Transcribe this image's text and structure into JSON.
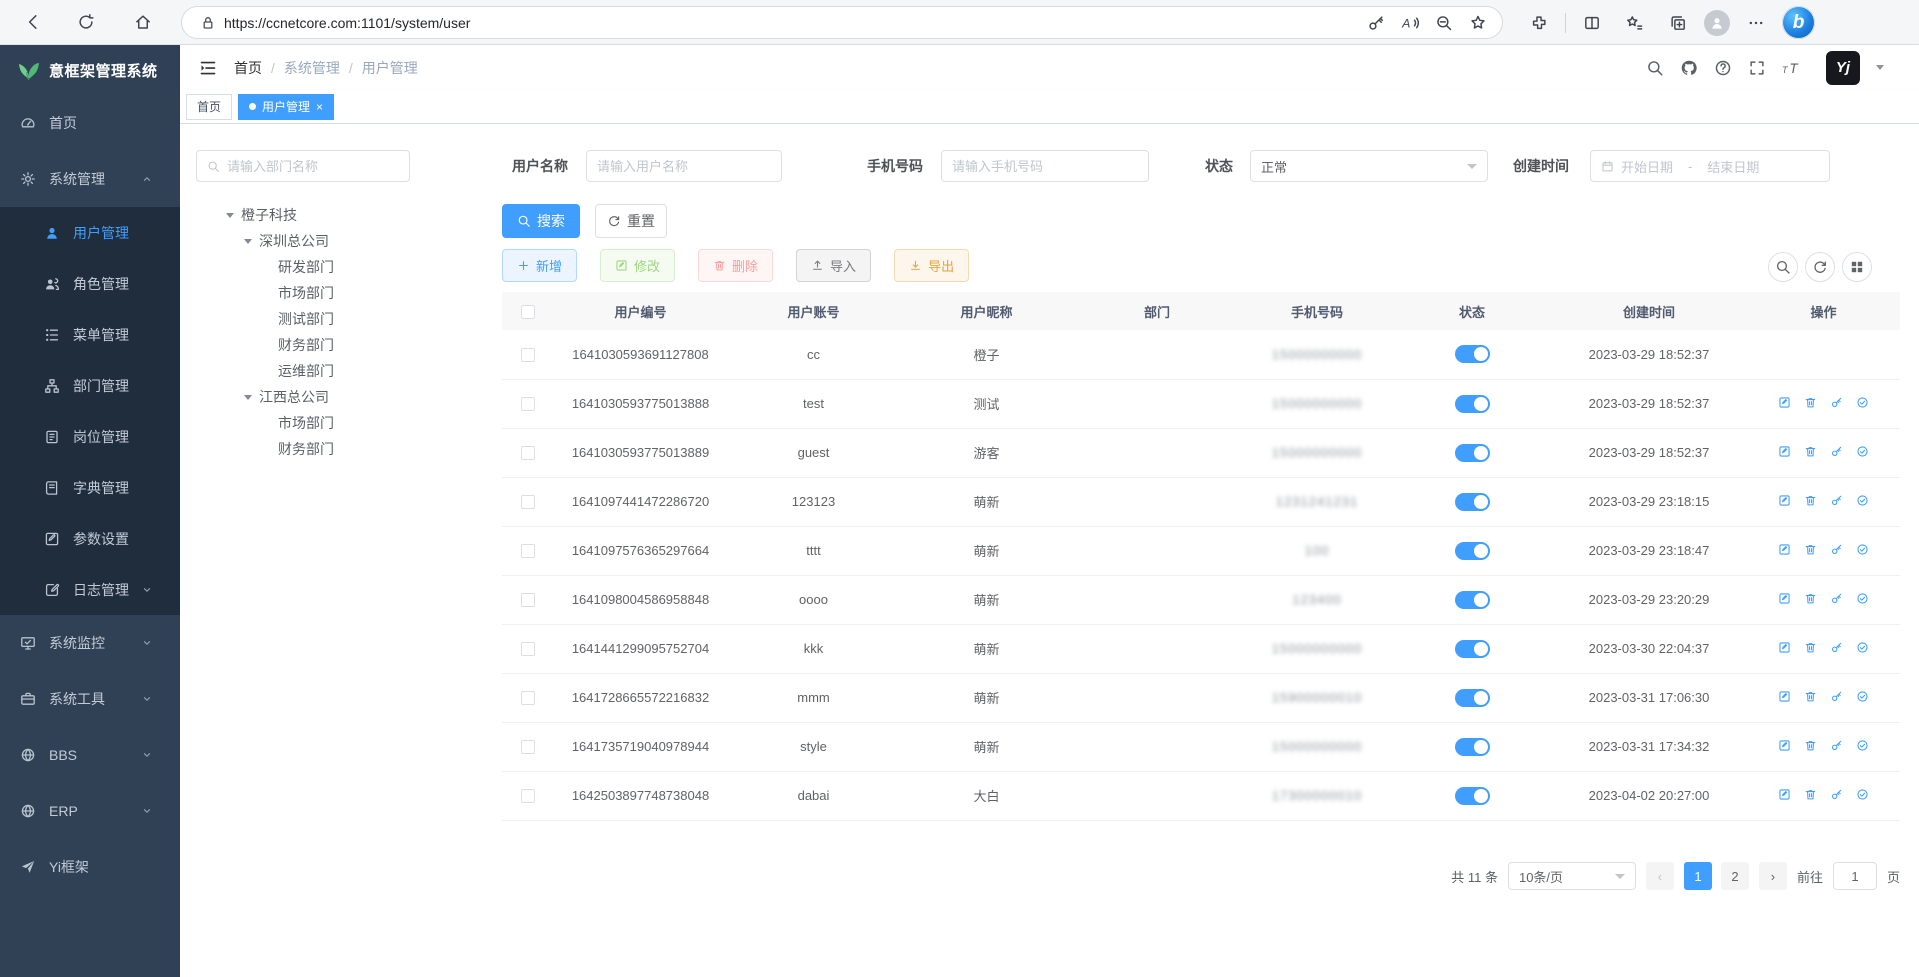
{
  "browser": {
    "url": "https://ccnetcore.com:1101/system/user"
  },
  "logo": {
    "title": "意框架管理系统"
  },
  "breadcrumb": {
    "separator": "/",
    "items": [
      "首页",
      "系统管理",
      "用户管理"
    ]
  },
  "tags": {
    "items": [
      {
        "label": "首页",
        "active": false,
        "closable": false
      },
      {
        "label": "用户管理",
        "active": true,
        "closable": true
      }
    ]
  },
  "sidebar": {
    "items": [
      {
        "label": "首页",
        "icon": "dashboard",
        "level": 0
      },
      {
        "label": "系统管理",
        "icon": "gear",
        "level": 0,
        "caret": "up"
      },
      {
        "label": "用户管理",
        "icon": "user",
        "level": 1,
        "active": true
      },
      {
        "label": "角色管理",
        "icon": "users",
        "level": 1
      },
      {
        "label": "菜单管理",
        "icon": "menu",
        "level": 1
      },
      {
        "label": "部门管理",
        "icon": "org",
        "level": 1
      },
      {
        "label": "岗位管理",
        "icon": "badge",
        "level": 1
      },
      {
        "label": "字典管理",
        "icon": "dict",
        "level": 1
      },
      {
        "label": "参数设置",
        "icon": "param",
        "level": 1
      },
      {
        "label": "日志管理",
        "icon": "log",
        "level": 1,
        "caret": "down"
      },
      {
        "label": "系统监控",
        "icon": "monitor",
        "level": 0,
        "caret": "down"
      },
      {
        "label": "系统工具",
        "icon": "tool",
        "level": 0,
        "caret": "down"
      },
      {
        "label": "BBS",
        "icon": "globe",
        "level": 0,
        "caret": "down"
      },
      {
        "label": "ERP",
        "icon": "globe",
        "level": 0,
        "caret": "down"
      },
      {
        "label": "Yi框架",
        "icon": "send",
        "level": 0
      }
    ]
  },
  "filters": {
    "dept_placeholder": "请输入部门名称",
    "username_label": "用户名称",
    "username_placeholder": "请输入用户名称",
    "phone_label": "手机号码",
    "phone_placeholder": "请输入手机号码",
    "status_label": "状态",
    "status_value": "正常",
    "created_label": "创建时间",
    "start_placeholder": "开始日期",
    "range_separator": "-",
    "end_placeholder": "结束日期"
  },
  "actions": {
    "search": "搜索",
    "reset": "重置",
    "add": "新增",
    "edit": "修改",
    "del": "删除",
    "import": "导入",
    "export": "导出"
  },
  "tree": {
    "nodes": [
      {
        "label": "橙子科技",
        "level": 0,
        "expanded": true
      },
      {
        "label": "深圳总公司",
        "level": 1,
        "expanded": true
      },
      {
        "label": "研发部门",
        "level": 2
      },
      {
        "label": "市场部门",
        "level": 2
      },
      {
        "label": "测试部门",
        "level": 2
      },
      {
        "label": "财务部门",
        "level": 2
      },
      {
        "label": "运维部门",
        "level": 2
      },
      {
        "label": "江西总公司",
        "level": 1,
        "expanded": true
      },
      {
        "label": "市场部门",
        "level": 2
      },
      {
        "label": "财务部门",
        "level": 2
      }
    ]
  },
  "table": {
    "columns": [
      "用户编号",
      "用户账号",
      "用户昵称",
      "部门",
      "手机号码",
      "状态",
      "创建时间",
      "操作"
    ],
    "rows": [
      {
        "id": "1641030593691127808",
        "account": "cc",
        "nickname": "橙子",
        "dept": "",
        "phone": "15000000000",
        "phone_masked": true,
        "status": true,
        "created": "2023-03-29 18:52:37",
        "actions": false
      },
      {
        "id": "1641030593775013888",
        "account": "test",
        "nickname": "测试",
        "dept": "",
        "phone": "15000000000",
        "phone_masked": true,
        "status": true,
        "created": "2023-03-29 18:52:37",
        "actions": true
      },
      {
        "id": "1641030593775013889",
        "account": "guest",
        "nickname": "游客",
        "dept": "",
        "phone": "15000000000",
        "phone_masked": true,
        "status": true,
        "created": "2023-03-29 18:52:37",
        "actions": true
      },
      {
        "id": "1641097441472286720",
        "account": "123123",
        "nickname": "萌新",
        "dept": "",
        "phone": "1231241231",
        "phone_masked": true,
        "status": true,
        "created": "2023-03-29 23:18:15",
        "actions": true
      },
      {
        "id": "1641097576365297664",
        "account": "tttt",
        "nickname": "萌新",
        "dept": "",
        "phone": "100",
        "phone_masked": true,
        "status": true,
        "created": "2023-03-29 23:18:47",
        "actions": true
      },
      {
        "id": "1641098004586958848",
        "account": "oooo",
        "nickname": "萌新",
        "dept": "",
        "phone": "123400",
        "phone_masked": true,
        "status": true,
        "created": "2023-03-29 23:20:29",
        "actions": true
      },
      {
        "id": "1641441299095752704",
        "account": "kkk",
        "nickname": "萌新",
        "dept": "",
        "phone": "15000000000",
        "phone_masked": true,
        "status": true,
        "created": "2023-03-30 22:04:37",
        "actions": true
      },
      {
        "id": "1641728665572216832",
        "account": "mmm",
        "nickname": "萌新",
        "dept": "",
        "phone": "15900000010",
        "phone_masked": true,
        "status": true,
        "created": "2023-03-31 17:06:30",
        "actions": true
      },
      {
        "id": "1641735719040978944",
        "account": "style",
        "nickname": "萌新",
        "dept": "",
        "phone": "15000000000",
        "phone_masked": true,
        "status": true,
        "created": "2023-03-31 17:34:32",
        "actions": true
      },
      {
        "id": "1642503897748738048",
        "account": "dabai",
        "nickname": "大白",
        "dept": "",
        "phone": "17300000010",
        "phone_masked": true,
        "status": true,
        "created": "2023-04-02 20:27:00",
        "actions": true
      }
    ]
  },
  "pagination": {
    "total": "共 11 条",
    "size": "10条/页",
    "pages": [
      "1",
      "2"
    ],
    "active": "1",
    "prev": "‹",
    "next": "›",
    "goto_label": "前往",
    "goto_value": "1",
    "unit": "页"
  }
}
